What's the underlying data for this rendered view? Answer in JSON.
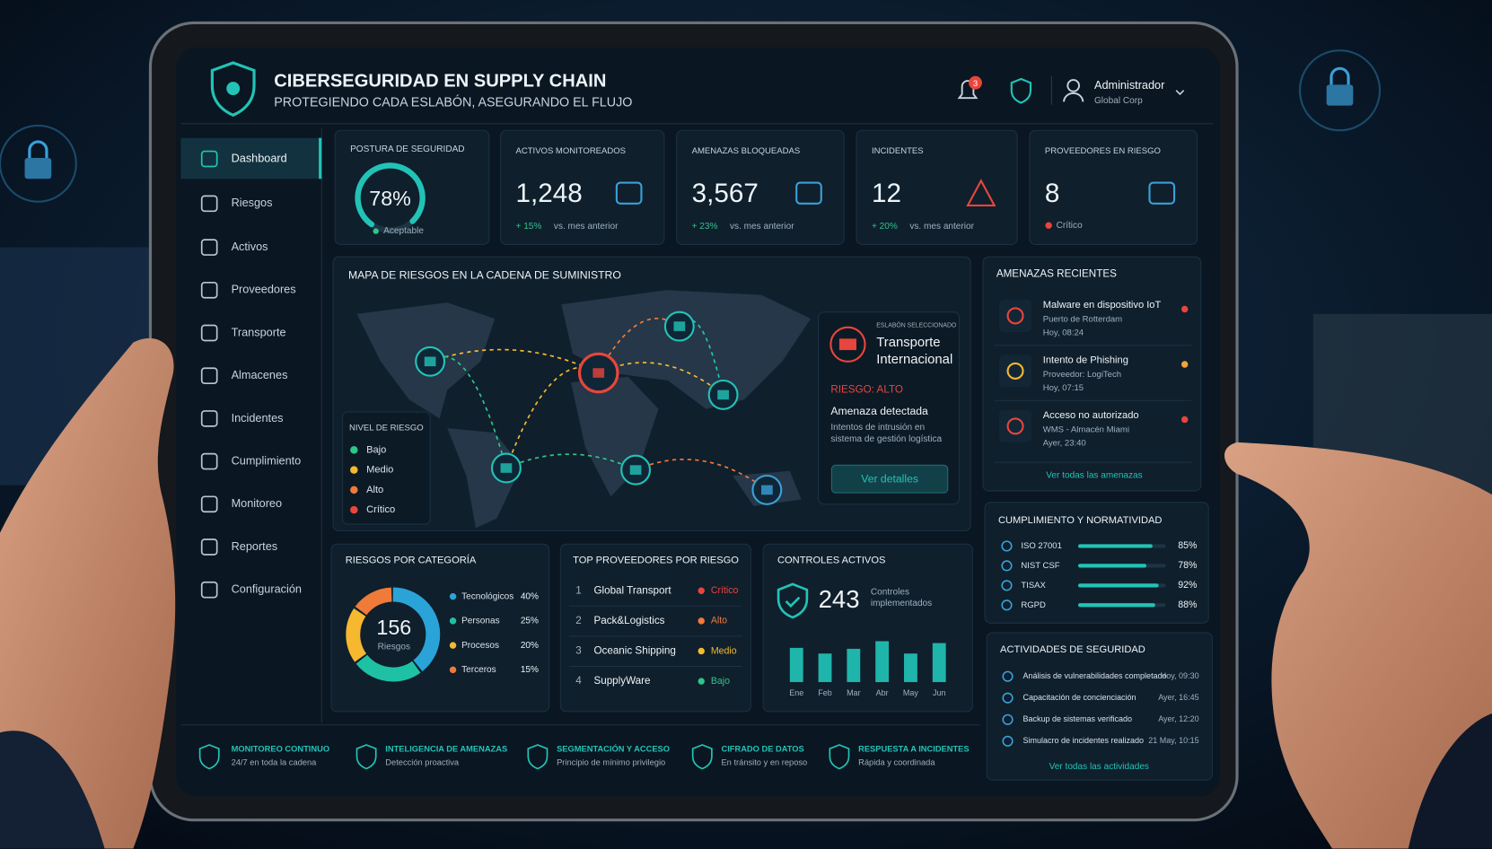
{
  "header": {
    "title": "CIBERSEGURIDAD EN SUPPLY CHAIN",
    "subtitle": "PROTEGIENDO CADA ESLABÓN, ASEGURANDO EL FLUJO",
    "notifications": "3",
    "user": {
      "name": "Administrador",
      "org": "Global Corp"
    }
  },
  "sidebar": {
    "items": [
      "Dashboard",
      "Riesgos",
      "Activos",
      "Proveedores",
      "Transporte",
      "Almacenes",
      "Incidentes",
      "Cumplimiento",
      "Monitoreo",
      "Reportes",
      "Configuración"
    ]
  },
  "posture": {
    "title": "POSTURA DE SEGURIDAD",
    "value": 78,
    "value_label": "78%",
    "status": "Aceptable"
  },
  "kpis": [
    {
      "label": "ACTIVOS MONITOREADOS",
      "value": "1,248",
      "change": "+ 15%",
      "note": "vs. mes anterior"
    },
    {
      "label": "AMENAZAS BLOQUEADAS",
      "value": "3,567",
      "change": "+ 23%",
      "note": "vs. mes anterior"
    },
    {
      "label": "INCIDENTES",
      "value": "12",
      "change": "+ 20%",
      "note": "vs. mes anterior"
    },
    {
      "label": "PROVEEDORES EN RIESGO",
      "value": "8",
      "status": "Crítico"
    }
  ],
  "map": {
    "title": "MAPA DE RIESGOS EN LA CADENA DE SUMINISTRO",
    "legend_title": "NIVEL DE RIESGO",
    "legend": [
      "Bajo",
      "Medio",
      "Alto",
      "Crítico"
    ],
    "selected": {
      "kicker": "ESLABÓN SELECCIONADO",
      "name": "Transporte Internacional",
      "risk": "RIESGO: ALTO",
      "heading": "Amenaza detectada",
      "description": "Intentos de intrusión en sistema de gestión logística",
      "button": "Ver detalles"
    }
  },
  "threats": {
    "title": "AMENAZAS RECIENTES",
    "items": [
      {
        "title": "Malware en dispositivo IoT",
        "source": "Puerto de Rotterdam",
        "time": "Hoy, 08:24"
      },
      {
        "title": "Intento de Phishing",
        "source": "Proveedor: LogiTech",
        "time": "Hoy, 07:15"
      },
      {
        "title": "Acceso no autorizado",
        "source": "WMS - Almacén Miami",
        "time": "Ayer, 23:40"
      }
    ],
    "link": "Ver todas las amenazas"
  },
  "compliance": {
    "title": "CUMPLIMIENTO Y NORMATIVIDAD",
    "items": [
      {
        "name": "ISO 27001",
        "value": 85,
        "label": "85%"
      },
      {
        "name": "NIST CSF",
        "value": 78,
        "label": "78%"
      },
      {
        "name": "TISAX",
        "value": 92,
        "label": "92%"
      },
      {
        "name": "RGPD",
        "value": 88,
        "label": "88%"
      }
    ]
  },
  "risk_categories": {
    "type": "donut",
    "title": "RIESGOS POR CATEGORÍA",
    "total": "156",
    "total_label": "Riesgos",
    "categories": [
      "Tecnológicos",
      "Personas",
      "Procesos",
      "Terceros"
    ],
    "values": [
      40,
      25,
      20,
      15
    ],
    "value_labels": [
      "40%",
      "25%",
      "20%",
      "15%"
    ],
    "colors": [
      "#2aa3d8",
      "#1fc1a5",
      "#f5b82e",
      "#f07a3a"
    ]
  },
  "suppliers": {
    "title": "TOP PROVEEDORES POR RIESGO",
    "items": [
      {
        "rank": "1",
        "name": "Global Transport",
        "risk": "Crítico",
        "color": "#e8453c"
      },
      {
        "rank": "2",
        "name": "Pack&Logistics",
        "risk": "Alto",
        "color": "#f07a3a"
      },
      {
        "rank": "3",
        "name": "Oceanic Shipping",
        "risk": "Medio",
        "color": "#f5b82e"
      },
      {
        "rank": "4",
        "name": "SupplyWare",
        "risk": "Bajo",
        "color": "#2fc48a"
      }
    ]
  },
  "controls": {
    "title": "CONTROLES ACTIVOS",
    "value": "243",
    "caption": "Controles implementados",
    "chart": {
      "type": "bar",
      "categories": [
        "Ene",
        "Feb",
        "Mar",
        "Abr",
        "May",
        "Jun"
      ],
      "values": [
        36,
        30,
        35,
        43,
        30,
        41
      ],
      "color": "#1fb5aa"
    }
  },
  "activities": {
    "title": "ACTIVIDADES DE SEGURIDAD",
    "items": [
      {
        "text": "Análisis de vulnerabilidades completado",
        "time": "Hoy, 09:30"
      },
      {
        "text": "Capacitación de concienciación",
        "time": "Ayer, 16:45"
      },
      {
        "text": "Backup de sistemas verificado",
        "time": "Ayer, 12:20"
      },
      {
        "text": "Simulacro de incidentes realizado",
        "time": "21 May, 10:15"
      }
    ],
    "link": "Ver todas las actividades"
  },
  "footer": {
    "items": [
      {
        "title": "MONITOREO CONTINUO",
        "subtitle": "24/7 en toda la cadena"
      },
      {
        "title": "INTELIGENCIA DE AMENAZAS",
        "subtitle": "Detección proactiva"
      },
      {
        "title": "SEGMENTACIÓN Y ACCESO",
        "subtitle": "Principio de mínimo privilegio"
      },
      {
        "title": "CIFRADO DE DATOS",
        "subtitle": "En tránsito y en reposo"
      },
      {
        "title": "RESPUESTA A INCIDENTES",
        "subtitle": "Rápida y coordinada"
      }
    ]
  }
}
